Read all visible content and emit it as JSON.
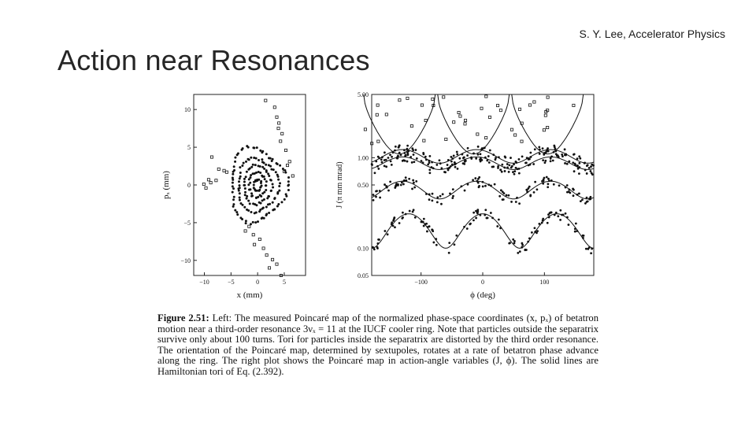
{
  "slide": {
    "title": "Action near Resonances",
    "header_note": "S. Y. Lee, Accelerator Physics"
  },
  "figure": {
    "caption_label": "Figure 2.51:",
    "caption_text": "Left: The measured Poincaré map of the normalized phase-space coordinates (x, pₓ) of betatron motion near a third-order resonance 3νₓ = 11 at the IUCF cooler ring. Note that particles outside the separatrix survive only about 100 turns. Tori for particles inside the separatrix are distorted by the third order resonance. The orientation of the Poincaré map, determined by sextupoles, rotates at a rate of betatron phase advance along the ring. The right plot shows the Poincaré map in action-angle variables (J, ϕ). The solid lines are Hamiltonian tori of Eq. (2.392)."
  },
  "chart_data": [
    {
      "type": "scatter",
      "xlabel": "x (mm)",
      "ylabel": "pₓ (mm)",
      "xlim": [
        -12,
        9
      ],
      "ylim": [
        -12,
        12
      ],
      "xticks": [
        -10,
        -5,
        0,
        5
      ],
      "yticks": [
        10,
        5,
        0,
        -5,
        -10
      ],
      "xtick_labels": [
        "−10",
        "−5",
        "0",
        "5"
      ],
      "ytick_labels": [
        "10",
        "5",
        "0",
        "−5",
        "−10"
      ],
      "rings": [
        {
          "rx": 0.7,
          "ry": 0.7,
          "n": 18
        },
        {
          "rx": 1.6,
          "ry": 1.6,
          "n": 30
        },
        {
          "rx": 2.6,
          "ry": 2.5,
          "n": 42
        },
        {
          "rx": 3.8,
          "ry": 3.5,
          "n": 56
        },
        {
          "rx": 5.2,
          "ry": 4.8,
          "n": 70
        }
      ],
      "outer_points": [
        [
          1.5,
          11.2
        ],
        [
          3.2,
          10.3
        ],
        [
          3.6,
          9.0
        ],
        [
          4.0,
          8.2
        ],
        [
          3.9,
          7.5
        ],
        [
          4.6,
          6.8
        ],
        [
          4.3,
          5.8
        ],
        [
          5.3,
          4.6
        ],
        [
          5.6,
          2.6
        ],
        [
          5.0,
          1.8
        ],
        [
          -8.6,
          3.7
        ],
        [
          -7.3,
          2.1
        ],
        [
          -9.2,
          0.7
        ],
        [
          -8.8,
          0.3
        ],
        [
          -7.8,
          0.6
        ],
        [
          -10.1,
          0.1
        ],
        [
          -9.7,
          -0.4
        ],
        [
          -5.8,
          1.7
        ],
        [
          -6.3,
          1.9
        ],
        [
          -2.3,
          -6.1
        ],
        [
          -1.6,
          -5.5
        ],
        [
          -0.8,
          -6.6
        ],
        [
          0.4,
          -7.2
        ],
        [
          1.1,
          -8.4
        ],
        [
          1.7,
          -9.3
        ],
        [
          2.8,
          -9.9
        ],
        [
          3.6,
          -10.5
        ],
        [
          2.2,
          -11.0
        ],
        [
          -0.6,
          -7.9
        ],
        [
          4.4,
          -12.0
        ],
        [
          6.0,
          3.1
        ],
        [
          6.6,
          1.2
        ]
      ]
    },
    {
      "type": "scatter",
      "xlabel": "ϕ (deg)",
      "ylabel": "J (π mm mrad)",
      "yscale": "log",
      "xlim": [
        -180,
        180
      ],
      "ylim": [
        0.05,
        5.0
      ],
      "xticks": [
        -100,
        0,
        100
      ],
      "xtick_labels": [
        "−100",
        "0",
        "100"
      ],
      "yticks": [
        5.0,
        1.0,
        0.5,
        0.1,
        0.05
      ],
      "ytick_labels": [
        "5.00",
        "1.00",
        "0.50",
        "0.10",
        "0.05"
      ],
      "tori": [
        {
          "base": 0.17,
          "amp": 0.07,
          "freq": 3,
          "phase": 0
        },
        {
          "base": 0.45,
          "amp": 0.1,
          "freq": 3,
          "phase": 30
        },
        {
          "base": 0.88,
          "amp": 0.14,
          "freq": 3,
          "phase": 30
        },
        {
          "base": 1.05,
          "amp": 0.18,
          "freq": 3,
          "phase": 30
        }
      ],
      "separatrix_centers": [
        -135,
        -15,
        105
      ]
    }
  ]
}
